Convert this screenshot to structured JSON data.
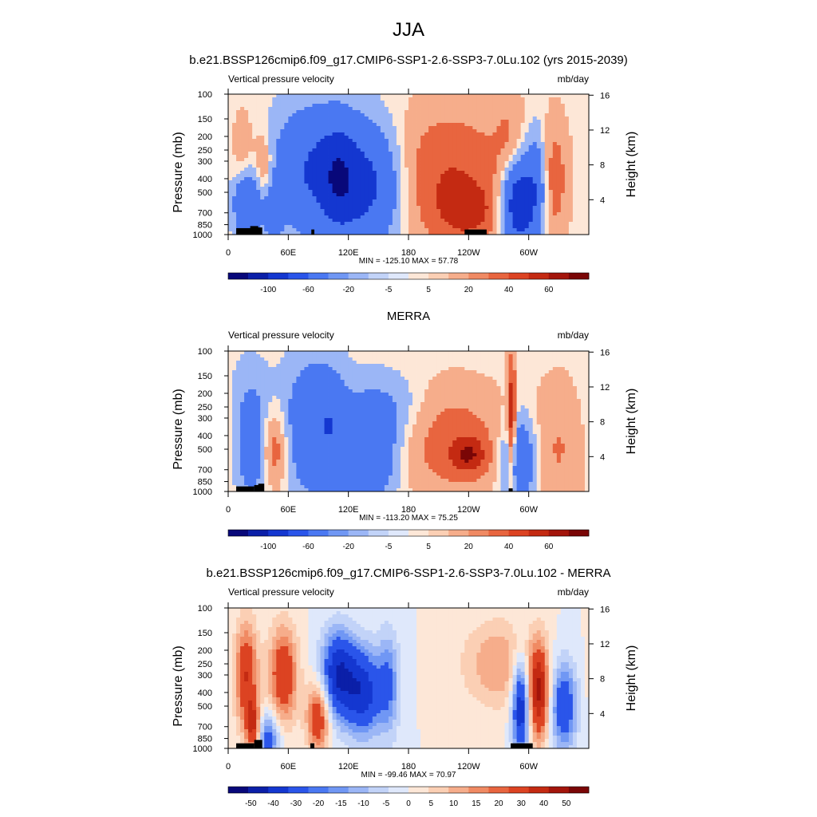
{
  "figure": {
    "season": "JJA"
  },
  "colors": {
    "palette_top": [
      "#08087a",
      "#0b1fa8",
      "#1437d0",
      "#2a55ea",
      "#4a78f2",
      "#7097f4",
      "#9bb6f6",
      "#c2d3f8",
      "#dfe8fb",
      "#fde7d7",
      "#fbcfb4",
      "#f6ad8b",
      "#f08a63",
      "#e8653f",
      "#dc4322",
      "#c42a12",
      "#a3150b",
      "#7a0606"
    ],
    "palette_diff": [
      "#08087a",
      "#0b1fa8",
      "#1437d0",
      "#2a55ea",
      "#4a78f2",
      "#7097f4",
      "#9bb6f6",
      "#c2d3f8",
      "#dfe8fb",
      "#fde7d7",
      "#fbcfb4",
      "#f6ad8b",
      "#f08a63",
      "#e8653f",
      "#dc4322",
      "#c42a12",
      "#a3150b",
      "#7a0606"
    ],
    "land": "#000000"
  },
  "chart_data": [
    {
      "type": "heatmap",
      "title": "b.e21.BSSP126cmip6.f09_g17.CMIP6-SSP1-2.6-SSP3-7.0Lu.102 (yrs 2015-2039)",
      "left_label": "Vertical pressure velocity",
      "right_label": "mb/day",
      "ylabel": "Pressure (mb)",
      "ylabel_right": "Height (km)",
      "x_ticks": [
        "0",
        "60E",
        "120E",
        "180",
        "120W",
        "60W"
      ],
      "x_tick_lon": [
        0,
        60,
        120,
        180,
        240,
        300
      ],
      "xlim": [
        0,
        360
      ],
      "y_ticks": [
        "100",
        "150",
        "200",
        "250",
        "300",
        "400",
        "500",
        "700",
        "850",
        "1000"
      ],
      "y_tick_p": [
        100,
        150,
        200,
        250,
        300,
        400,
        500,
        700,
        850,
        1000
      ],
      "ylim": [
        1000,
        100
      ],
      "log_y": true,
      "height_ticks": [
        "4",
        "8",
        "12",
        "16"
      ],
      "height_km": [
        4,
        8,
        12,
        16
      ],
      "stats": "MIN = -125.10  MAX =  57.78",
      "min": -125.1,
      "max": 57.78,
      "levels": [
        "-100",
        "-60",
        "-20",
        "-5",
        "5",
        "20",
        "40",
        "60"
      ],
      "cells": [
        {
          "lon": 20,
          "p": 600,
          "v": -60,
          "wl": 10,
          "wp": 0.35
        },
        {
          "lon": 35,
          "p": 350,
          "v": 30,
          "wl": 6,
          "wp": 0.45
        },
        {
          "lon": 45,
          "p": 700,
          "v": -40,
          "wl": 6,
          "wp": 0.3
        },
        {
          "lon": 15,
          "p": 250,
          "v": 15,
          "wl": 8,
          "wp": 0.5
        },
        {
          "lon": 85,
          "p": 350,
          "v": -60,
          "wl": 28,
          "wp": 0.7
        },
        {
          "lon": 140,
          "p": 450,
          "v": -70,
          "wl": 25,
          "wp": 0.7
        },
        {
          "lon": 110,
          "p": 400,
          "v": -40,
          "wl": 12,
          "wp": 0.6
        },
        {
          "lon": 220,
          "p": 400,
          "v": 40,
          "wl": 45,
          "wp": 0.8
        },
        {
          "lon": 240,
          "p": 700,
          "v": 30,
          "wl": 20,
          "wp": 0.3
        },
        {
          "lon": 290,
          "p": 600,
          "v": -100,
          "wl": 12,
          "wp": 0.5
        },
        {
          "lon": 308,
          "p": 400,
          "v": -40,
          "wl": 8,
          "wp": 0.6
        },
        {
          "lon": 325,
          "p": 400,
          "v": 30,
          "wl": 10,
          "wp": 0.7
        },
        {
          "lon": 280,
          "p": 200,
          "v": 15,
          "wl": 10,
          "wp": 0.6
        }
      ],
      "land": [
        [
          8,
          24,
          1000,
          900
        ],
        [
          22,
          30,
          1000,
          870
        ],
        [
          28,
          34,
          1000,
          890
        ],
        [
          83,
          86,
          1000,
          920
        ],
        [
          236,
          258,
          1000,
          920
        ]
      ]
    },
    {
      "type": "heatmap",
      "title": "MERRA",
      "left_label": "Vertical pressure velocity",
      "right_label": "mb/day",
      "ylabel": "Pressure (mb)",
      "ylabel_right": "Height (km)",
      "x_ticks": [
        "0",
        "60E",
        "120E",
        "180",
        "120W",
        "60W"
      ],
      "x_tick_lon": [
        0,
        60,
        120,
        180,
        240,
        300
      ],
      "xlim": [
        0,
        360
      ],
      "y_ticks": [
        "100",
        "150",
        "200",
        "250",
        "300",
        "400",
        "500",
        "700",
        "850",
        "1000"
      ],
      "y_tick_p": [
        100,
        150,
        200,
        250,
        300,
        400,
        500,
        700,
        850,
        1000
      ],
      "ylim": [
        1000,
        100
      ],
      "log_y": true,
      "height_ticks": [
        "4",
        "8",
        "12",
        "16"
      ],
      "height_km": [
        4,
        8,
        12,
        16
      ],
      "stats": "MIN = -113.20  MAX =  75.25",
      "min": -113.2,
      "max": 75.25,
      "levels": [
        "-100",
        "-60",
        "-20",
        "-5",
        "5",
        "20",
        "40",
        "60"
      ],
      "cells": [
        {
          "lon": 25,
          "p": 500,
          "v": -40,
          "wl": 12,
          "wp": 0.6
        },
        {
          "lon": 45,
          "p": 500,
          "v": 40,
          "wl": 10,
          "wp": 0.45
        },
        {
          "lon": 85,
          "p": 350,
          "v": -50,
          "wl": 20,
          "wp": 0.75
        },
        {
          "lon": 140,
          "p": 500,
          "v": -60,
          "wl": 20,
          "wp": 0.6
        },
        {
          "lon": 105,
          "p": 300,
          "v": -20,
          "wl": 10,
          "wp": 0.5
        },
        {
          "lon": 225,
          "p": 450,
          "v": 30,
          "wl": 40,
          "wp": 0.65
        },
        {
          "lon": 240,
          "p": 550,
          "v": 40,
          "wl": 12,
          "wp": 0.2
        },
        {
          "lon": 290,
          "p": 600,
          "v": -60,
          "wl": 12,
          "wp": 0.5
        },
        {
          "lon": 283,
          "p": 350,
          "v": 60,
          "wl": 3,
          "wp": 0.8
        },
        {
          "lon": 330,
          "p": 500,
          "v": 20,
          "wl": 18,
          "wp": 0.8
        },
        {
          "lon": 170,
          "p": 250,
          "v": -15,
          "wl": 20,
          "wp": 0.4
        },
        {
          "lon": 20,
          "p": 200,
          "v": -10,
          "wl": 15,
          "wp": 0.5
        }
      ],
      "land": [
        [
          8,
          26,
          1000,
          920
        ],
        [
          26,
          32,
          1000,
          900
        ],
        [
          30,
          36,
          1000,
          880
        ],
        [
          280,
          284,
          1000,
          950
        ]
      ]
    },
    {
      "type": "heatmap",
      "title": "b.e21.BSSP126cmip6.f09_g17.CMIP6-SSP1-2.6-SSP3-7.0Lu.102 - MERRA",
      "left_label": "Vertical pressure velocity",
      "right_label": "mb/day",
      "ylabel": "Pressure (mb)",
      "ylabel_right": "Height (km)",
      "x_ticks": [
        "0",
        "60E",
        "120E",
        "180",
        "120W",
        "60W"
      ],
      "x_tick_lon": [
        0,
        60,
        120,
        180,
        240,
        300
      ],
      "xlim": [
        0,
        360
      ],
      "y_ticks": [
        "100",
        "150",
        "200",
        "250",
        "300",
        "400",
        "500",
        "700",
        "850",
        "1000"
      ],
      "y_tick_p": [
        100,
        150,
        200,
        250,
        300,
        400,
        500,
        700,
        850,
        1000
      ],
      "ylim": [
        1000,
        100
      ],
      "log_y": true,
      "height_ticks": [
        "4",
        "8",
        "12",
        "16"
      ],
      "height_km": [
        4,
        8,
        12,
        16
      ],
      "stats": "MIN = -99.46  MAX =  70.97",
      "min": -99.46,
      "max": 70.97,
      "levels": [
        "-50",
        "-40",
        "-30",
        "-20",
        "-15",
        "-10",
        "-5",
        "0",
        "5",
        "10",
        "15",
        "20",
        "30",
        "40",
        "50"
      ],
      "cells": [
        {
          "lon": 18,
          "p": 300,
          "v": 30,
          "wl": 8,
          "wp": 0.6
        },
        {
          "lon": 55,
          "p": 300,
          "v": 30,
          "wl": 10,
          "wp": 0.55
        },
        {
          "lon": 90,
          "p": 600,
          "v": 30,
          "wl": 8,
          "wp": 0.4
        },
        {
          "lon": 110,
          "p": 300,
          "v": -40,
          "wl": 12,
          "wp": 0.5
        },
        {
          "lon": 135,
          "p": 400,
          "v": -35,
          "wl": 12,
          "wp": 0.5
        },
        {
          "lon": 160,
          "p": 350,
          "v": -20,
          "wl": 8,
          "wp": 0.6
        },
        {
          "lon": 270,
          "p": 250,
          "v": 15,
          "wl": 25,
          "wp": 0.5
        },
        {
          "lon": 292,
          "p": 500,
          "v": -40,
          "wl": 6,
          "wp": 0.55
        },
        {
          "lon": 310,
          "p": 400,
          "v": 40,
          "wl": 7,
          "wp": 0.55
        },
        {
          "lon": 335,
          "p": 500,
          "v": -30,
          "wl": 9,
          "wp": 0.5
        },
        {
          "lon": 40,
          "p": 850,
          "v": -25,
          "wl": 8,
          "wp": 0.3
        },
        {
          "lon": 25,
          "p": 700,
          "v": 30,
          "wl": 5,
          "wp": 0.3
        }
      ],
      "land": [
        [
          8,
          26,
          1000,
          920
        ],
        [
          26,
          34,
          1000,
          870
        ],
        [
          82,
          86,
          1000,
          920
        ],
        [
          282,
          304,
          1000,
          920
        ]
      ]
    }
  ]
}
